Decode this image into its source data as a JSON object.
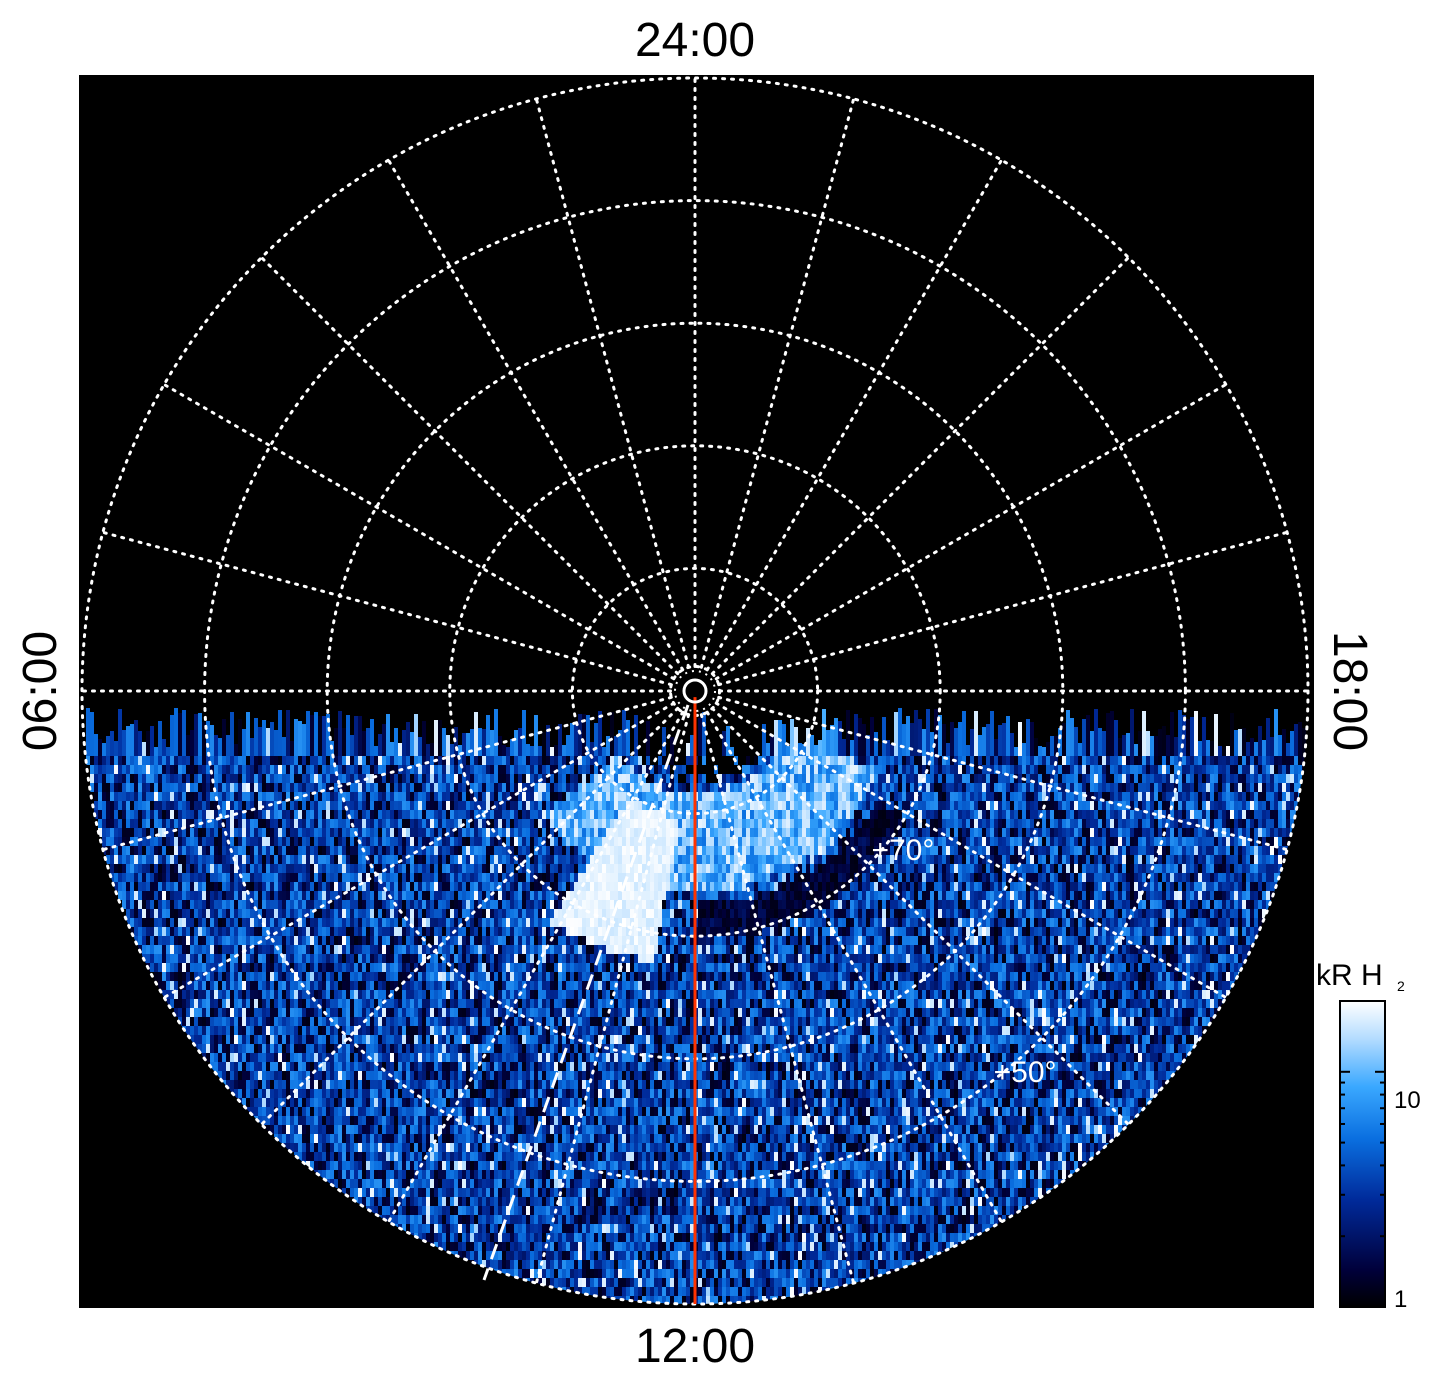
{
  "chart_data": {
    "type": "heatmap",
    "projection": "polar",
    "description_of_axes": "local time around the pole, latitude as radius",
    "local_time_labels": {
      "top": "24:00",
      "bottom": "12:00",
      "left": "06:00",
      "right": "18:00"
    },
    "latitude_labels": [
      {
        "text": "+70°",
        "lat": 70,
        "local_time_hours": 15.3
      },
      {
        "text": "+50°",
        "lat": 50,
        "local_time_hours": 14.6
      }
    ],
    "grid": {
      "latitude_circles_deg": [
        80,
        70,
        60,
        50,
        40
      ],
      "local_time_meridians_every_hours": 1,
      "style": "dotted white"
    },
    "colorbar": {
      "title_main": "kR H",
      "title_sub": "2",
      "scale": "log",
      "range": [
        1,
        20
      ],
      "tick_labels": [
        "1",
        "10"
      ],
      "colormap": [
        "#000000",
        "#00003a",
        "#002a9a",
        "#0a6fe0",
        "#3aa8ff",
        "#b6ddff",
        "#ffffff"
      ]
    },
    "data_coverage": "observed only on the dayside (local times ~06:00 to ~18:00 via 12:00)",
    "features": [
      {
        "name": "bright auroral patch",
        "local_time_range_hours": [
          9.8,
          11.4
        ],
        "latitude_range_deg": [
          68,
          80
        ],
        "intensity_kR": "20+"
      },
      {
        "name": "auroral arc",
        "local_time_range_hours": [
          8.5,
          16.5
        ],
        "latitude_range_deg": [
          74,
          82
        ],
        "intensity_kR": "5-15"
      }
    ],
    "overlays": [
      {
        "name": "noon meridian",
        "color": "#ff3300",
        "local_time_hours": 12.0
      },
      {
        "name": "dashed reference line",
        "color": "#ffffff",
        "style": "dashed"
      }
    ],
    "pole_marker": "circle at pole"
  }
}
